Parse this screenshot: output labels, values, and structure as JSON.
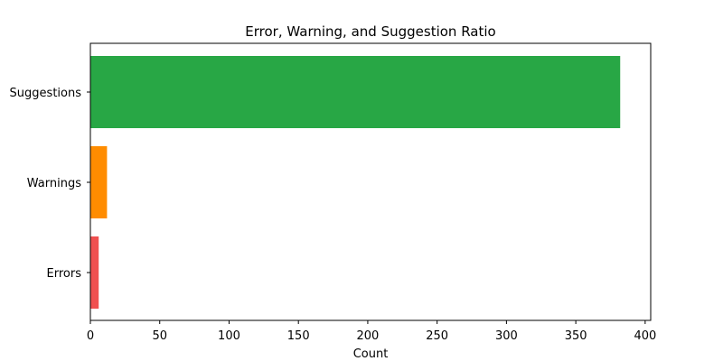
{
  "chart_data": {
    "type": "bar",
    "orientation": "horizontal",
    "title": "Error, Warning, and Suggestion Ratio",
    "xlabel": "Count",
    "ylabel": "",
    "categories": [
      "Errors",
      "Warnings",
      "Suggestions"
    ],
    "values": [
      6,
      12,
      382
    ],
    "colors": [
      "#f05050",
      "#ff8c00",
      "#28a745"
    ],
    "xlim": [
      0,
      404
    ],
    "xticks": [
      0,
      50,
      100,
      150,
      200,
      250,
      300,
      350,
      400
    ],
    "grid": false
  }
}
